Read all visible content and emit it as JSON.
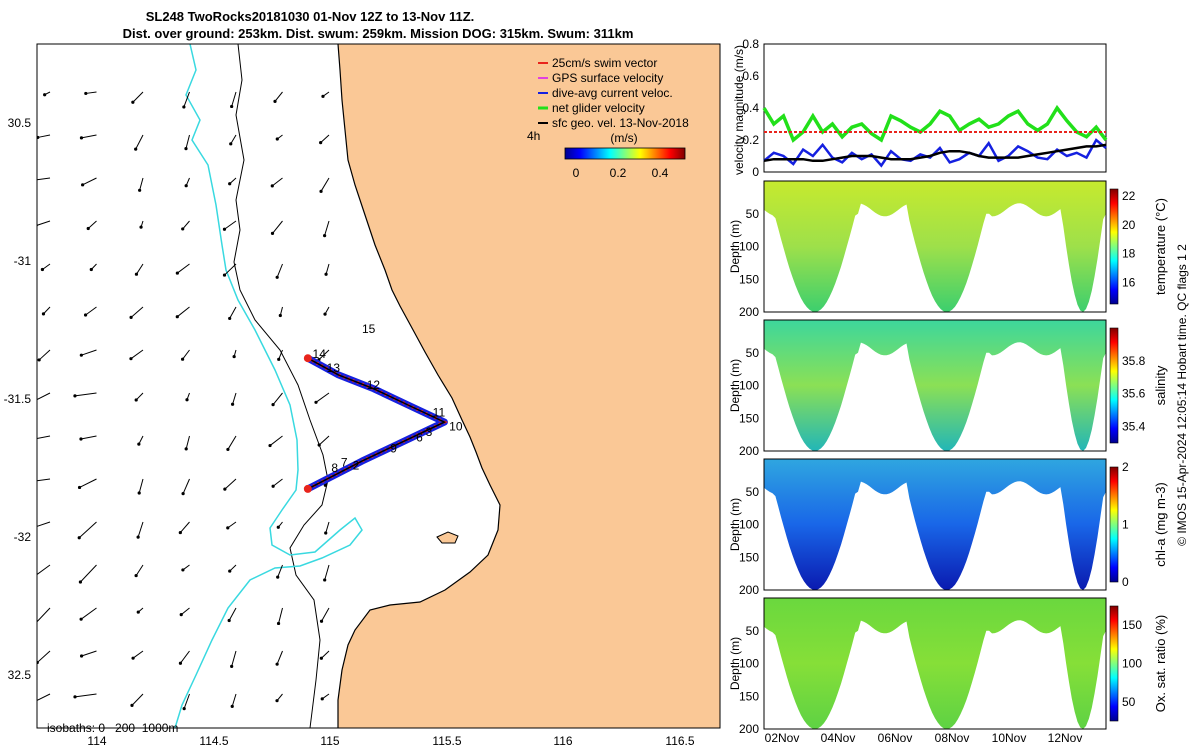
{
  "title": {
    "line1": "SL248 TwoRocks20181030 01-Nov 12Z to 13-Nov 11Z.",
    "line2": "Dist. over ground: 253km. Dist. swum: 259km. Mission DOG: 315km. Swum: 311km"
  },
  "credit": "© IMOS 15-Apr-2024 12:05:14 Hobart time. QC flags 1  2",
  "colors": {
    "land": "#fac896",
    "isobath_200": "#000000",
    "isobath_1000": "#39d9e0",
    "swim": "#e8241c",
    "gps": "#e040e0",
    "dive": "#1520e0",
    "net": "#22e01a",
    "sfc": "#000000"
  },
  "map": {
    "x_ticks": [
      "114",
      "114.5",
      "115",
      "115.5",
      "116",
      "116.5"
    ],
    "y_ticks": [
      "30.5",
      "-31",
      "-31.5",
      "-32",
      "32.5"
    ],
    "xlim": [
      113.77,
      116.67
    ],
    "ylim": [
      -32.66,
      -30.2
    ],
    "legend": [
      {
        "label": "25cm/s swim vector",
        "color": "#e8241c"
      },
      {
        "label": "GPS surface velocity",
        "color": "#e040e0"
      },
      {
        "label": "dive-avg current veloc.",
        "color": "#1520e0"
      },
      {
        "label": "net glider velocity",
        "color": "#22e01a"
      },
      {
        "label": "sfc geo. vel. 13-Nov-2018",
        "color": "#000000"
      }
    ],
    "time_label": "4h",
    "colorbar": {
      "units": "(m/s)",
      "ticks": [
        "0",
        "0.2",
        "0.4"
      ],
      "range": [
        -0.05,
        0.5
      ]
    },
    "isobath_note": "isobaths: 0   200  1000m",
    "track": [
      {
        "lon": 114.92,
        "lat": -31.33
      },
      {
        "lon": 115.05,
        "lat": -31.39
      },
      {
        "lon": 115.2,
        "lat": -31.44
      },
      {
        "lon": 115.35,
        "lat": -31.5
      },
      {
        "lon": 115.5,
        "lat": -31.56
      },
      {
        "lon": 115.35,
        "lat": -31.62
      },
      {
        "lon": 115.15,
        "lat": -31.7
      },
      {
        "lon": 114.92,
        "lat": -31.8
      }
    ],
    "day_labels": [
      {
        "t": "14",
        "lon": 114.94,
        "lat": -31.33
      },
      {
        "t": "13",
        "lon": 115.0,
        "lat": -31.38
      },
      {
        "t": "12",
        "lon": 115.17,
        "lat": -31.44
      },
      {
        "t": "11",
        "lon": 115.45,
        "lat": -31.54
      },
      {
        "t": "10",
        "lon": 115.52,
        "lat": -31.59
      },
      {
        "t": "15",
        "lon": 115.15,
        "lat": -31.24
      },
      {
        "t": "3",
        "lon": 115.42,
        "lat": -31.61
      },
      {
        "t": "6",
        "lon": 115.38,
        "lat": -31.63
      },
      {
        "t": "9",
        "lon": 115.27,
        "lat": -31.67
      },
      {
        "t": "7",
        "lon": 115.06,
        "lat": -31.72
      },
      {
        "t": "8",
        "lon": 115.02,
        "lat": -31.74
      },
      {
        "t": "2",
        "lon": 115.11,
        "lat": -31.73
      }
    ]
  },
  "chart_data": [
    {
      "type": "line",
      "ylabel": "velocity magnitude (m/s)",
      "ylim": [
        0,
        0.8
      ],
      "y_ticks": [
        "0",
        "0.2",
        "0.4",
        "0.6",
        "0.8"
      ],
      "series": [
        {
          "color": "#22e01a",
          "values": [
            0.4,
            0.3,
            0.35,
            0.2,
            0.25,
            0.35,
            0.25,
            0.3,
            0.22,
            0.28,
            0.3,
            0.24,
            0.2,
            0.35,
            0.32,
            0.28,
            0.25,
            0.3,
            0.38,
            0.35,
            0.26,
            0.3,
            0.33,
            0.28,
            0.3,
            0.35,
            0.38,
            0.3,
            0.26,
            0.3,
            0.4,
            0.32,
            0.25,
            0.22,
            0.28,
            0.2
          ]
        },
        {
          "color": "#e8241c",
          "values": [
            0.25,
            0.25,
            0.25,
            0.25,
            0.25,
            0.25,
            0.25,
            0.25,
            0.25,
            0.25,
            0.25,
            0.25,
            0.25,
            0.25,
            0.25,
            0.25,
            0.25,
            0.25,
            0.25,
            0.25,
            0.25,
            0.25,
            0.25,
            0.25,
            0.25,
            0.25,
            0.25,
            0.25,
            0.25,
            0.25,
            0.25,
            0.25,
            0.25,
            0.25,
            0.25,
            0.25
          ]
        },
        {
          "color": "#1520e0",
          "values": [
            0.07,
            0.12,
            0.1,
            0.05,
            0.14,
            0.1,
            0.17,
            0.09,
            0.06,
            0.12,
            0.08,
            0.11,
            0.04,
            0.13,
            0.08,
            0.07,
            0.11,
            0.09,
            0.15,
            0.06,
            0.08,
            0.12,
            0.1,
            0.18,
            0.07,
            0.1,
            0.16,
            0.13,
            0.09,
            0.08,
            0.14,
            0.1,
            0.12,
            0.09,
            0.2,
            0.15
          ]
        },
        {
          "color": "#000000",
          "values": [
            0.07,
            0.08,
            0.08,
            0.08,
            0.08,
            0.07,
            0.07,
            0.08,
            0.09,
            0.1,
            0.1,
            0.1,
            0.09,
            0.08,
            0.08,
            0.08,
            0.09,
            0.1,
            0.12,
            0.13,
            0.13,
            0.12,
            0.1,
            0.09,
            0.09,
            0.09,
            0.09,
            0.1,
            0.11,
            0.12,
            0.13,
            0.14,
            0.15,
            0.16,
            0.16,
            0.17
          ]
        }
      ]
    },
    {
      "type": "heatmap",
      "variable": "temperature",
      "ylabel": "Depth (m)",
      "clabel": "temperature (°C)",
      "ylim": [
        200,
        0
      ],
      "y_ticks": [
        "50",
        "100",
        "150",
        "200"
      ],
      "c_ticks": [
        "16",
        "18",
        "20",
        "22"
      ],
      "crange": [
        14.5,
        22.5
      ]
    },
    {
      "type": "heatmap",
      "variable": "salinity",
      "ylabel": "Depth (m)",
      "clabel": "salinity",
      "ylim": [
        200,
        0
      ],
      "y_ticks": [
        "50",
        "100",
        "150",
        "200"
      ],
      "c_ticks": [
        "35.4",
        "35.6",
        "35.8"
      ],
      "crange": [
        35.3,
        36.0
      ]
    },
    {
      "type": "heatmap",
      "variable": "chl-a",
      "ylabel": "Depth (m)",
      "clabel": "chl-a (mg m-3)",
      "ylim": [
        200,
        0
      ],
      "y_ticks": [
        "50",
        "100",
        "150",
        "200"
      ],
      "c_ticks": [
        "0",
        "1",
        "2"
      ],
      "crange": [
        0,
        2
      ]
    },
    {
      "type": "heatmap",
      "variable": "oxygen",
      "ylabel": "Depth (m)",
      "clabel": "Ox. sat. ratio (%)",
      "ylim": [
        200,
        0
      ],
      "y_ticks": [
        "50",
        "100",
        "150",
        "200"
      ],
      "c_ticks": [
        "50",
        "100",
        "150"
      ],
      "crange": [
        25,
        175
      ],
      "x_ticks": [
        "02Nov",
        "04Nov",
        "06Nov",
        "08Nov",
        "10Nov",
        "12Nov"
      ]
    }
  ]
}
